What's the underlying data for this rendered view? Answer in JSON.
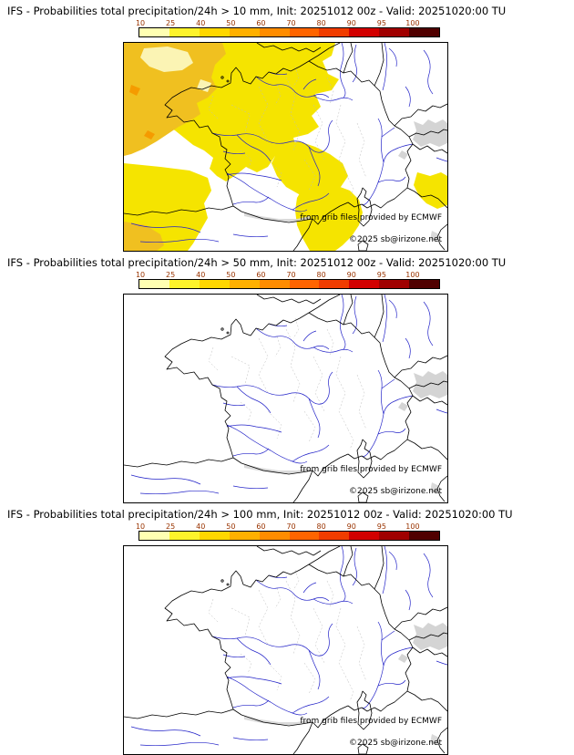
{
  "colorbar": {
    "ticks": [
      "10",
      "25",
      "40",
      "50",
      "60",
      "70",
      "80",
      "90",
      "95",
      "100"
    ],
    "colors": [
      "#ffffb2",
      "#fdf32b",
      "#ffd700",
      "#ffb000",
      "#ff8c00",
      "#ff6400",
      "#f03c00",
      "#d20000",
      "#a00000",
      "#500000"
    ],
    "tick_color": "#993300"
  },
  "panels": [
    {
      "title": "IFS - Probabilities total precipitation/24h > 10 mm, Init: 20251012 00z - Valid: 20251020:00 TU",
      "attribution": "from grib files provided by ECMWF",
      "copyright": "©2025 sb@irizone.net",
      "show_precip": true
    },
    {
      "title": "IFS - Probabilities total precipitation/24h > 50 mm, Init: 20251012 00z - Valid: 20251020:00 TU",
      "attribution": "from grib files provided by ECMWF",
      "copyright": "©2025 sb@irizone.net",
      "show_precip": false
    },
    {
      "title": "IFS - Probabilities total precipitation/24h > 100 mm, Init: 20251012 00z - Valid: 20251020:00 TU",
      "attribution": "from grib files provided by ECMWF",
      "copyright": "©2025 sb@irizone.net",
      "show_precip": false
    }
  ],
  "map_colors": {
    "coast_border": "#000000",
    "river": "#2323c8",
    "dept_boundary": "#bdbdbd",
    "terrain_gray": "#cdcdcd",
    "precip_yellow_10": "#f5e400",
    "precip_gold_25": "#f0c020",
    "precip_pale_low": "#fbf4b4",
    "precip_orange_40": "#f59b00"
  }
}
